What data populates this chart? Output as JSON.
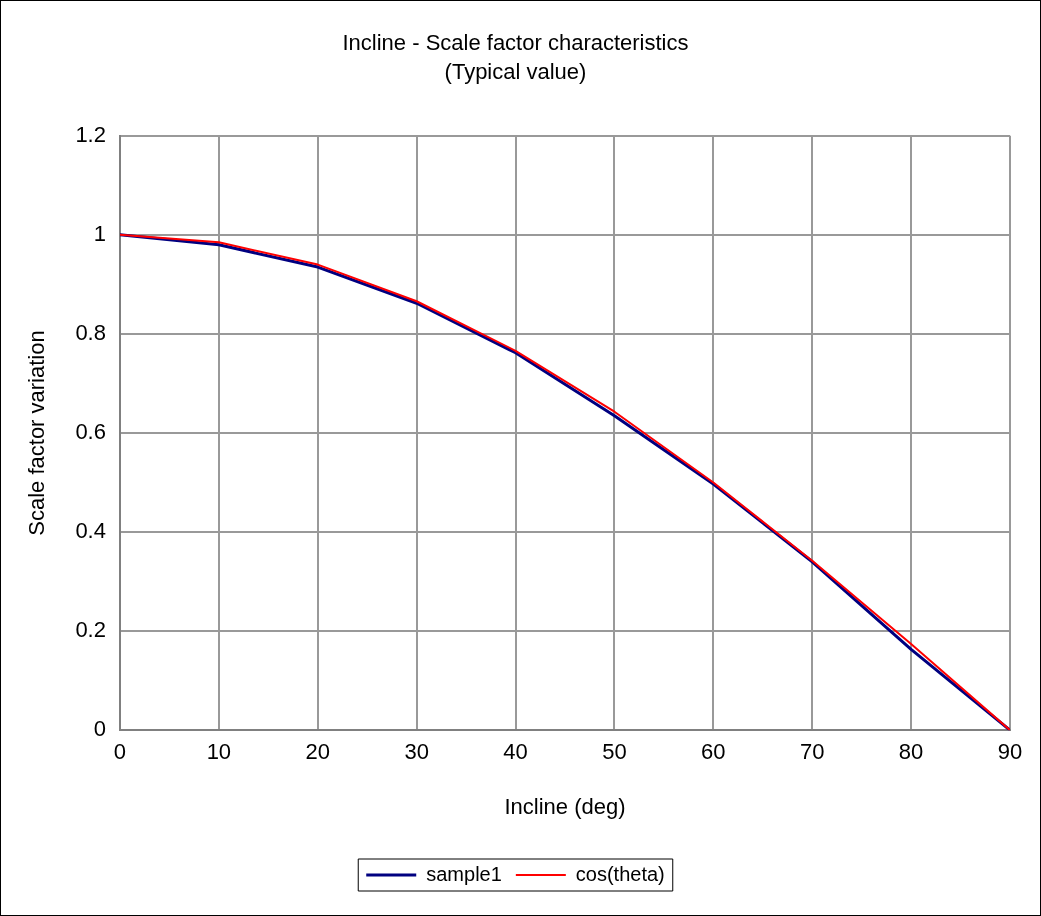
{
  "chart_data": {
    "type": "line",
    "title": "Incline - Scale factor characteristics",
    "subtitle": "(Typical value)",
    "xlabel": "Incline (deg)",
    "ylabel": "Scale factor variation",
    "x": [
      0,
      10,
      20,
      30,
      40,
      50,
      60,
      70,
      80,
      90
    ],
    "series": [
      {
        "name": "sample1",
        "color": "#000080",
        "values": [
          1.0,
          0.98,
          0.935,
          0.862,
          0.762,
          0.635,
          0.497,
          0.34,
          0.163,
          0
        ]
      },
      {
        "name": "cos(theta)",
        "color": "#ff0000",
        "values": [
          1.0,
          0.985,
          0.94,
          0.866,
          0.766,
          0.643,
          0.5,
          0.342,
          0.174,
          0
        ]
      }
    ],
    "xlim": [
      0,
      90
    ],
    "xticks": [
      0,
      10,
      20,
      30,
      40,
      50,
      60,
      70,
      80,
      90
    ],
    "ylim": [
      0,
      1.2
    ],
    "yticks": [
      0,
      0.2,
      0.4,
      0.6,
      0.8,
      1,
      1.2
    ],
    "grid": true,
    "legend": "bottom",
    "marker": "none",
    "line_style": "solid"
  }
}
